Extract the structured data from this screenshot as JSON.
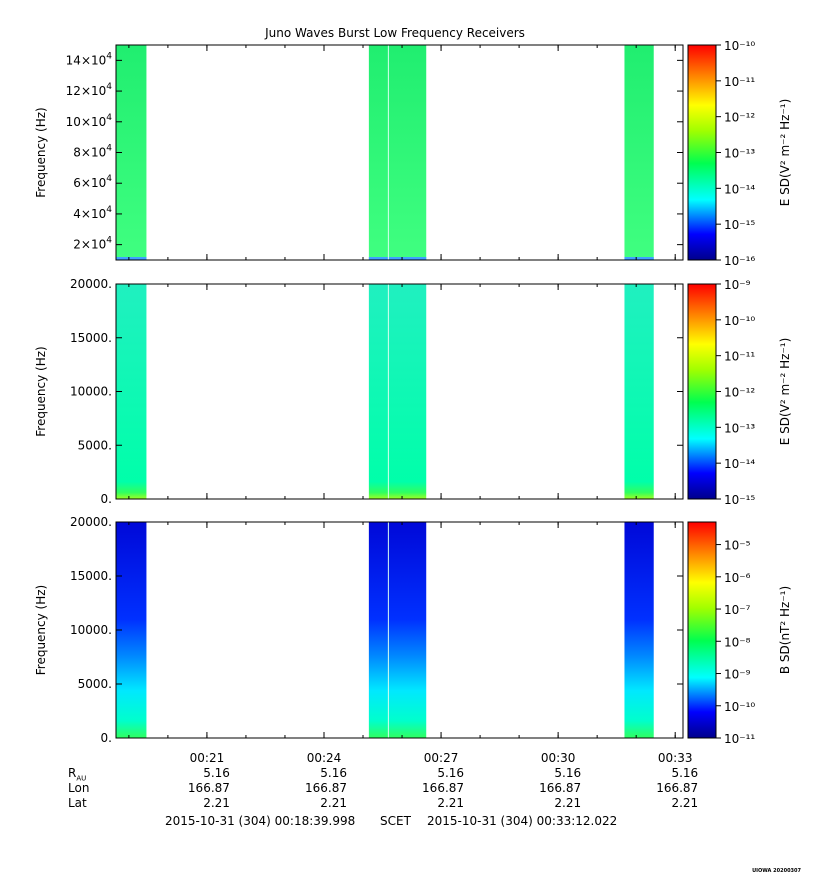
{
  "chart_data": {
    "type": "heatmap",
    "title": "Juno Waves Burst Low Frequency Receivers",
    "time_range": [
      "2015-10-31 (304) 00:18:39.998",
      "2015-10-31 (304) 00:33:12.022"
    ],
    "x_ticks": [
      {
        "label": "00:21",
        "minute": 21
      },
      {
        "label": "00:24",
        "minute": 24
      },
      {
        "label": "00:27",
        "minute": 27
      },
      {
        "label": "00:30",
        "minute": 30
      },
      {
        "label": "00:33",
        "minute": 33
      }
    ],
    "xlim_minutes": [
      18.67,
      33.2
    ],
    "data_segments_minutes": [
      [
        18.67,
        19.45
      ],
      [
        25.15,
        26.62
      ],
      [
        31.7,
        32.45
      ]
    ],
    "panels": [
      {
        "id": "panel-1",
        "ylabel": "Frequency (Hz)",
        "ylim": [
          10000,
          150000
        ],
        "y_ticks": [
          {
            "mant": "2×10",
            "exp": "4",
            "value": 20000
          },
          {
            "mant": "4×10",
            "exp": "4",
            "value": 40000
          },
          {
            "mant": "6×10",
            "exp": "4",
            "value": 60000
          },
          {
            "mant": "8×10",
            "exp": "4",
            "value": 80000
          },
          {
            "mant": "10×10",
            "exp": "4",
            "value": 100000
          },
          {
            "mant": "12×10",
            "exp": "4",
            "value": 120000
          },
          {
            "mant": "14×10",
            "exp": "4",
            "value": 140000
          }
        ],
        "colorbar_label": "E SD(V² m⁻² Hz⁻¹)",
        "colorbar_ticks": [
          "10⁻¹⁶",
          "10⁻¹⁵",
          "10⁻¹⁴",
          "10⁻¹³",
          "10⁻¹²",
          "10⁻¹¹",
          "10⁻¹⁰"
        ],
        "colorbar_range_log10": [
          -16,
          -10
        ],
        "typical_log10": -13.6
      },
      {
        "id": "panel-2",
        "ylabel": "Frequency (Hz)",
        "ylim": [
          0,
          20000
        ],
        "y_ticks": [
          {
            "mant": "0.",
            "exp": "",
            "value": 0
          },
          {
            "mant": "5000.",
            "exp": "",
            "value": 5000
          },
          {
            "mant": "10000.",
            "exp": "",
            "value": 10000
          },
          {
            "mant": "15000.",
            "exp": "",
            "value": 15000
          },
          {
            "mant": "20000.",
            "exp": "",
            "value": 20000
          }
        ],
        "colorbar_label": "E SD(V² m⁻² Hz⁻¹)",
        "colorbar_ticks": [
          "10⁻¹⁵",
          "10⁻¹⁴",
          "10⁻¹³",
          "10⁻¹²",
          "10⁻¹¹",
          "10⁻¹⁰",
          "10⁻⁹"
        ],
        "colorbar_range_log10": [
          -15,
          -9
        ],
        "typical_log10": -13.1
      },
      {
        "id": "panel-3",
        "ylabel": "Frequency (Hz)",
        "ylim": [
          0,
          20000
        ],
        "y_ticks": [
          {
            "mant": "0.",
            "exp": "",
            "value": 0
          },
          {
            "mant": "5000.",
            "exp": "",
            "value": 5000
          },
          {
            "mant": "10000.",
            "exp": "",
            "value": 10000
          },
          {
            "mant": "15000.",
            "exp": "",
            "value": 15000
          },
          {
            "mant": "20000.",
            "exp": "",
            "value": 20000
          }
        ],
        "colorbar_label": "B SD(nT² Hz⁻¹)",
        "colorbar_ticks": [
          "10⁻¹¹",
          "10⁻¹⁰",
          "10⁻⁹",
          "10⁻⁸",
          "10⁻⁷",
          "10⁻⁶",
          "10⁻⁵"
        ],
        "colorbar_range_log10": [
          -11,
          -4.3
        ],
        "typical_log10": -10.4
      }
    ]
  },
  "ephemeris": {
    "rows": [
      {
        "label": "R",
        "sub": "AU",
        "values": [
          "5.16",
          "5.16",
          "5.16",
          "5.16",
          "5.16"
        ]
      },
      {
        "label": "Lon",
        "sub": "",
        "values": [
          "166.87",
          "166.87",
          "166.87",
          "166.87",
          "166.87"
        ]
      },
      {
        "label": "Lat",
        "sub": "",
        "values": [
          "2.21",
          "2.21",
          "2.21",
          "2.21",
          "2.21"
        ]
      }
    ]
  },
  "footer": {
    "start": "2015-10-31 (304) 00:18:39.998",
    "frame": "SCET",
    "end": "2015-10-31 (304) 00:33:12.022"
  },
  "stamp": "UIOWA 20200307"
}
